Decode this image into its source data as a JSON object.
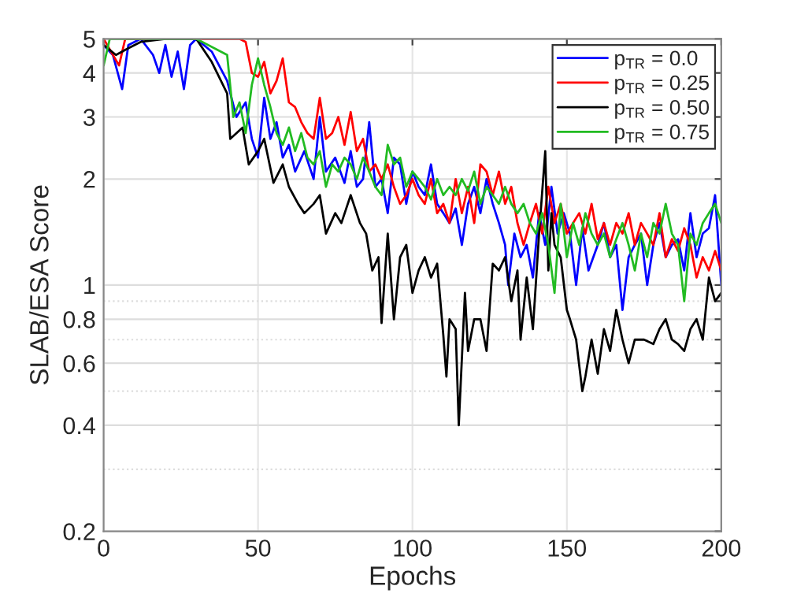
{
  "chart_data": {
    "type": "line",
    "xlabel": "Epochs",
    "ylabel": "SLAB/ESA Score",
    "log": "y",
    "xlim": [
      0,
      200
    ],
    "xticks": [
      0,
      50,
      100,
      150,
      200
    ],
    "ylim": [
      0.2,
      5
    ],
    "yticks": [
      0.2,
      {
        "value": 0.3,
        "label": null
      },
      0.4,
      {
        "value": 0.5,
        "label": null
      },
      0.6,
      {
        "value": 0.7,
        "label": null
      },
      0.8,
      {
        "value": 0.9,
        "label": null
      },
      1,
      2,
      3,
      4,
      5
    ],
    "grid": true,
    "legend": "top right",
    "marker": "none",
    "line_style": "solid",
    "series": [
      {
        "name": "p$_{TR}$ = 0.0",
        "color": "#0000ff",
        "x": [
          0,
          3,
          6,
          8,
          12,
          16,
          18,
          20,
          22,
          24,
          26,
          28,
          30,
          35,
          40,
          43,
          46,
          48,
          50,
          52,
          54,
          56,
          58,
          60,
          62,
          65,
          68,
          70,
          72,
          75,
          78,
          80,
          82,
          84,
          86,
          88,
          90,
          92,
          94,
          96,
          98,
          100,
          102,
          104,
          106,
          108,
          110,
          112,
          114,
          116,
          118,
          120,
          122,
          124,
          126,
          128,
          130,
          131,
          133,
          135,
          137,
          139,
          141,
          143,
          145,
          147,
          149,
          151,
          153,
          155,
          157,
          160,
          162,
          164,
          166,
          168,
          170,
          172,
          174,
          176,
          178,
          180,
          182,
          184,
          186,
          188,
          190,
          192,
          194,
          196,
          198,
          200
        ],
        "values": [
          4.8,
          4.5,
          3.6,
          4.8,
          5,
          4.5,
          4.0,
          4.8,
          3.9,
          4.6,
          3.6,
          4.8,
          5,
          4.6,
          3.8,
          3.0,
          3.3,
          2.6,
          2.3,
          3.4,
          2.6,
          2.9,
          2.3,
          2.5,
          2.1,
          2.4,
          2.0,
          3.0,
          2.1,
          2.3,
          1.95,
          2.4,
          1.9,
          2.0,
          2.9,
          1.9,
          2.0,
          1.6,
          2.3,
          2.2,
          1.7,
          2.1,
          1.9,
          1.8,
          2.2,
          1.7,
          1.6,
          1.5,
          1.65,
          1.3,
          1.7,
          1.9,
          1.6,
          2.0,
          1.7,
          1.5,
          1.3,
          1.0,
          1.4,
          1.2,
          1.3,
          1.05,
          1.6,
          1.3,
          1.9,
          1.4,
          1.6,
          1.4,
          1.0,
          1.45,
          1.1,
          1.3,
          1.5,
          1.2,
          1.3,
          0.85,
          1.2,
          1.3,
          1.4,
          1.0,
          1.3,
          1.5,
          1.2,
          1.3,
          1.35,
          1.1,
          1.6,
          1.2,
          1.4,
          1.45,
          1.8,
          1.0
        ]
      },
      {
        "name": "p$_{TR}$ = 0.25",
        "color": "#ff0000",
        "x": [
          0,
          5,
          7,
          44,
          46,
          48,
          50,
          52,
          54,
          56,
          58,
          60,
          62,
          64,
          66,
          68,
          70,
          72,
          74,
          76,
          78,
          80,
          82,
          84,
          86,
          88,
          90,
          92,
          94,
          96,
          98,
          100,
          102,
          104,
          106,
          108,
          110,
          112,
          114,
          116,
          118,
          120,
          122,
          124,
          126,
          128,
          130,
          132,
          134,
          136,
          138,
          140,
          142,
          144,
          146,
          148,
          150,
          152,
          154,
          156,
          158,
          160,
          162,
          164,
          166,
          168,
          170,
          172,
          174,
          176,
          178,
          180,
          182,
          184,
          186,
          188,
          190,
          192,
          194,
          196,
          198,
          200
        ],
        "values": [
          5,
          4.2,
          5,
          5,
          4.9,
          4.0,
          3.9,
          4.3,
          3.5,
          3.8,
          4.4,
          3.3,
          3.2,
          2.9,
          2.7,
          2.6,
          3.4,
          2.6,
          2.7,
          3.0,
          2.5,
          3.1,
          2.4,
          2.6,
          2.1,
          2.2,
          2.0,
          2.2,
          1.9,
          1.7,
          1.8,
          2.0,
          1.8,
          1.7,
          2.0,
          1.6,
          1.7,
          1.5,
          2.0,
          1.6,
          1.9,
          1.5,
          2.2,
          2.1,
          1.8,
          2.1,
          1.7,
          1.9,
          1.5,
          1.3,
          1.5,
          1.7,
          1.4,
          1.9,
          1.5,
          1.7,
          1.4,
          1.5,
          1.6,
          1.4,
          1.7,
          1.35,
          1.5,
          1.3,
          1.5,
          1.4,
          1.6,
          1.3,
          1.5,
          1.4,
          1.3,
          1.6,
          1.2,
          1.35,
          1.25,
          1.45,
          1.3,
          1.05,
          1.2,
          1.1,
          1.25,
          1.1
        ]
      },
      {
        "name": "p$_{TR}$ = 0.50",
        "color": "#000000",
        "x": [
          0,
          4,
          8,
          12,
          20,
          30,
          35,
          40,
          41,
          45,
          47,
          50,
          52,
          55,
          58,
          60,
          63,
          65,
          68,
          70,
          72,
          75,
          77,
          80,
          83,
          85,
          87,
          89,
          90,
          92,
          94,
          96,
          98,
          100,
          102,
          104,
          106,
          108,
          110,
          111,
          112,
          114,
          115,
          117,
          118,
          120,
          122,
          124,
          126,
          128,
          130,
          132,
          134,
          135,
          137,
          139,
          141,
          143,
          144,
          145,
          146,
          148,
          150,
          151,
          153,
          155,
          156,
          158,
          160,
          162,
          164,
          166,
          168,
          170,
          172,
          175,
          178,
          180,
          182,
          184,
          186,
          188,
          190,
          192,
          194,
          196,
          198,
          200
        ],
        "values": [
          4.8,
          4.5,
          4.7,
          4.9,
          5,
          5,
          4.3,
          3.5,
          2.6,
          2.8,
          2.2,
          2.4,
          2.6,
          1.95,
          2.2,
          1.9,
          1.7,
          1.6,
          1.7,
          1.8,
          1.4,
          1.6,
          1.5,
          1.8,
          1.5,
          1.4,
          1.1,
          1.2,
          0.78,
          1.4,
          0.8,
          1.2,
          1.3,
          0.95,
          1.1,
          1.2,
          1.05,
          1.15,
          0.72,
          0.55,
          0.8,
          0.75,
          0.4,
          0.95,
          0.65,
          0.8,
          0.8,
          0.65,
          1.15,
          1.1,
          1.2,
          0.9,
          1.1,
          0.7,
          1.05,
          0.75,
          1.4,
          2.4,
          1.1,
          1.6,
          1.3,
          1.2,
          0.85,
          0.8,
          0.7,
          0.5,
          0.55,
          0.7,
          0.56,
          0.75,
          0.65,
          0.85,
          0.7,
          0.6,
          0.7,
          0.7,
          0.68,
          0.75,
          0.8,
          0.7,
          0.68,
          0.65,
          0.75,
          0.8,
          0.7,
          1.05,
          0.9,
          0.95
        ]
      },
      {
        "name": "p$_{TR}$ = 0.75",
        "color": "#22bb22",
        "x": [
          0,
          2,
          10,
          20,
          30,
          40,
          42,
          44,
          46,
          48,
          50,
          52,
          54,
          56,
          58,
          60,
          62,
          64,
          66,
          68,
          70,
          72,
          74,
          76,
          78,
          80,
          82,
          84,
          86,
          88,
          90,
          92,
          94,
          96,
          98,
          100,
          102,
          104,
          106,
          108,
          110,
          112,
          114,
          116,
          118,
          120,
          122,
          124,
          126,
          128,
          130,
          132,
          134,
          136,
          138,
          140,
          142,
          144,
          146,
          148,
          150,
          152,
          154,
          156,
          158,
          160,
          162,
          164,
          166,
          168,
          170,
          172,
          174,
          176,
          178,
          180,
          182,
          184,
          186,
          188,
          190,
          192,
          194,
          196,
          198,
          200
        ],
        "values": [
          4.2,
          5,
          5,
          5,
          5,
          4.5,
          3.0,
          3.3,
          2.7,
          3.7,
          4.4,
          3.7,
          3.2,
          2.7,
          2.5,
          2.8,
          2.4,
          2.7,
          2.3,
          2.2,
          2.4,
          1.9,
          2.2,
          2.1,
          2.3,
          2.2,
          2.0,
          2.3,
          2.1,
          1.9,
          1.8,
          2.5,
          2.2,
          2.3,
          1.9,
          2.1,
          2.0,
          1.9,
          1.75,
          2.0,
          1.8,
          1.9,
          1.8,
          2.0,
          1.85,
          2.1,
          1.7,
          1.9,
          1.8,
          1.7,
          1.9,
          1.7,
          1.6,
          1.7,
          1.5,
          1.4,
          1.6,
          1.3,
          0.95,
          1.7,
          1.2,
          1.5,
          1.3,
          1.6,
          1.4,
          1.3,
          1.4,
          1.2,
          1.35,
          1.5,
          1.3,
          1.1,
          1.4,
          1.2,
          1.5,
          1.4,
          1.7,
          1.4,
          1.3,
          0.9,
          1.4,
          1.3,
          1.5,
          1.6,
          1.7,
          1.5
        ]
      }
    ]
  }
}
